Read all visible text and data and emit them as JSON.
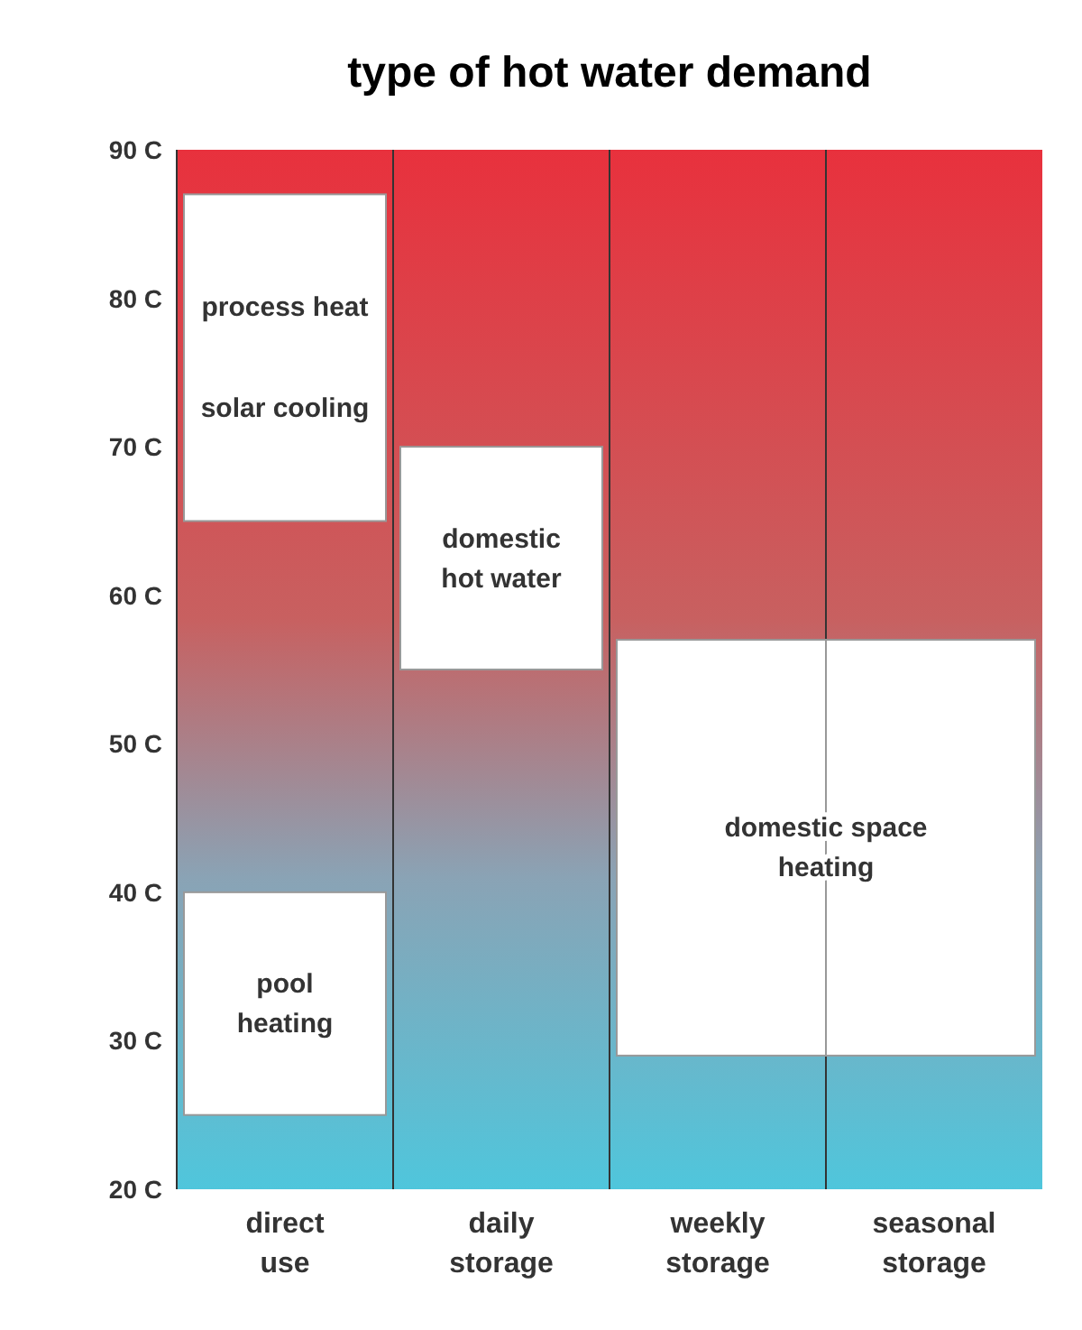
{
  "chart_data": {
    "type": "bar",
    "title": "type of hot water demand",
    "categories": [
      "direct use",
      "daily storage",
      "weekly storage",
      "seasonal storage"
    ],
    "series": [
      {
        "name": "process heat\nsolar cooling",
        "color": "#ffffff",
        "base": [
          65,
          null,
          null,
          null
        ],
        "values": [
          22,
          null,
          null,
          null
        ]
      },
      {
        "name": "domestic\nhot water",
        "color": "#ffffff",
        "base": [
          null,
          55,
          null,
          null
        ],
        "values": [
          null,
          15,
          null,
          null
        ]
      },
      {
        "name": "domestic space\nheating",
        "color": "#ffffff",
        "base": [
          null,
          null,
          29,
          29
        ],
        "values": [
          null,
          null,
          28,
          28
        ]
      },
      {
        "name": "pool\nheating",
        "color": "#ffffff",
        "base": [
          25,
          null,
          null,
          null
        ],
        "values": [
          15,
          null,
          null,
          null
        ]
      }
    ],
    "ylim": [
      20,
      90
    ],
    "yticks": [
      {
        "value": 20,
        "label": "20 C"
      },
      {
        "value": 30,
        "label": "30 C"
      },
      {
        "value": 40,
        "label": "40 C"
      },
      {
        "value": 50,
        "label": "50 C"
      },
      {
        "value": 60,
        "label": "60 C"
      },
      {
        "value": 70,
        "label": "70 C"
      },
      {
        "value": 80,
        "label": "80 C"
      },
      {
        "value": 90,
        "label": "90 C"
      }
    ]
  }
}
